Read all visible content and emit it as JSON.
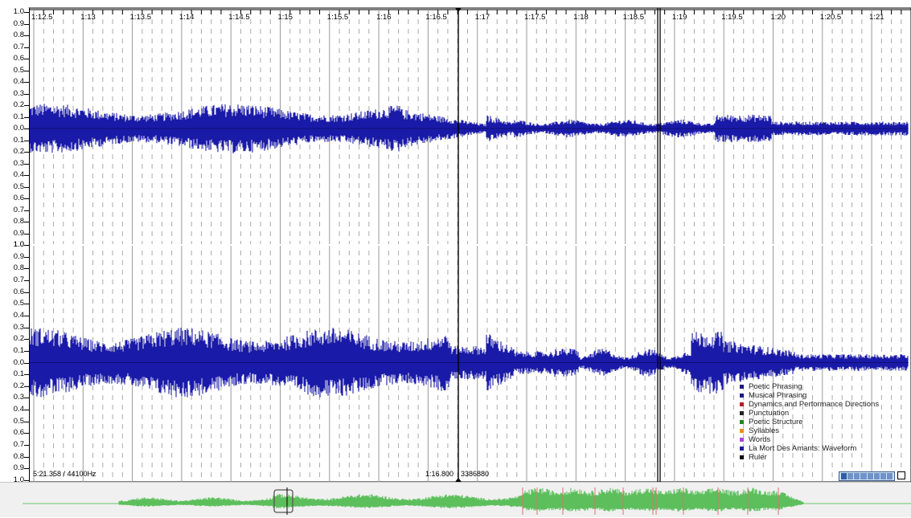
{
  "ruler": {
    "labels": [
      "1:12.5",
      "1:13",
      "1:13.5",
      "1:14",
      "1:14.5",
      "1:15",
      "1:15.5",
      "1:16",
      "1:16.5",
      "1:17",
      "1:17.5",
      "1:18",
      "1:18.5",
      "1:19",
      "1:19.5",
      "1:20",
      "1:20.5",
      "1:21"
    ]
  },
  "amplitude_axis": {
    "top_channel": [
      "1.0",
      "0.9",
      "0.8",
      "0.7",
      "0.6",
      "0.5",
      "0.4",
      "0.3",
      "0.2",
      "0.1",
      "0.0",
      "0.1",
      "0.2",
      "0.3",
      "0.4",
      "0.5",
      "0.6",
      "0.7",
      "0.8",
      "0.9",
      "1.0"
    ],
    "bottom_channel": [
      "1.0",
      "0.9",
      "0.8",
      "0.7",
      "0.6",
      "0.5",
      "0.4",
      "0.3",
      "0.2",
      "0.1",
      "0.0",
      "0.1",
      "0.2",
      "0.3",
      "0.4",
      "0.5",
      "0.6",
      "0.7",
      "0.8",
      "0.9",
      "1.0"
    ]
  },
  "status": {
    "duration_rate": "5:21.358 / 44100Hz",
    "cursor_time": "1:16.800",
    "cursor_sample": "3386880"
  },
  "legend": [
    {
      "label": "Poetic Phrasing",
      "color": "#1a1a8a"
    },
    {
      "label": "Musical Phrasing",
      "color": "#1a1a8a"
    },
    {
      "label": "Dynamics and Performance Directions",
      "color": "#b02020"
    },
    {
      "label": "Punctuation",
      "color": "#222222"
    },
    {
      "label": "Poetic Structure",
      "color": "#1a8a1a"
    },
    {
      "label": "Syllables",
      "color": "#f08c1a"
    },
    {
      "label": "Words",
      "color": "#b040e0"
    },
    {
      "label": "La Mort Des Amants: Waveform",
      "color": "#1a1aa0"
    },
    {
      "label": "Ruler",
      "color": "#000000"
    }
  ],
  "colors": {
    "waveform": "#1a1aa8",
    "overview_waveform": "#5cbf5c",
    "overview_marks": "#e07070",
    "grid": "#999999",
    "cursor": "#000000"
  },
  "icons": {
    "zoom": "zoom-slider-icon",
    "fullscreen": "fullscreen-icon"
  }
}
